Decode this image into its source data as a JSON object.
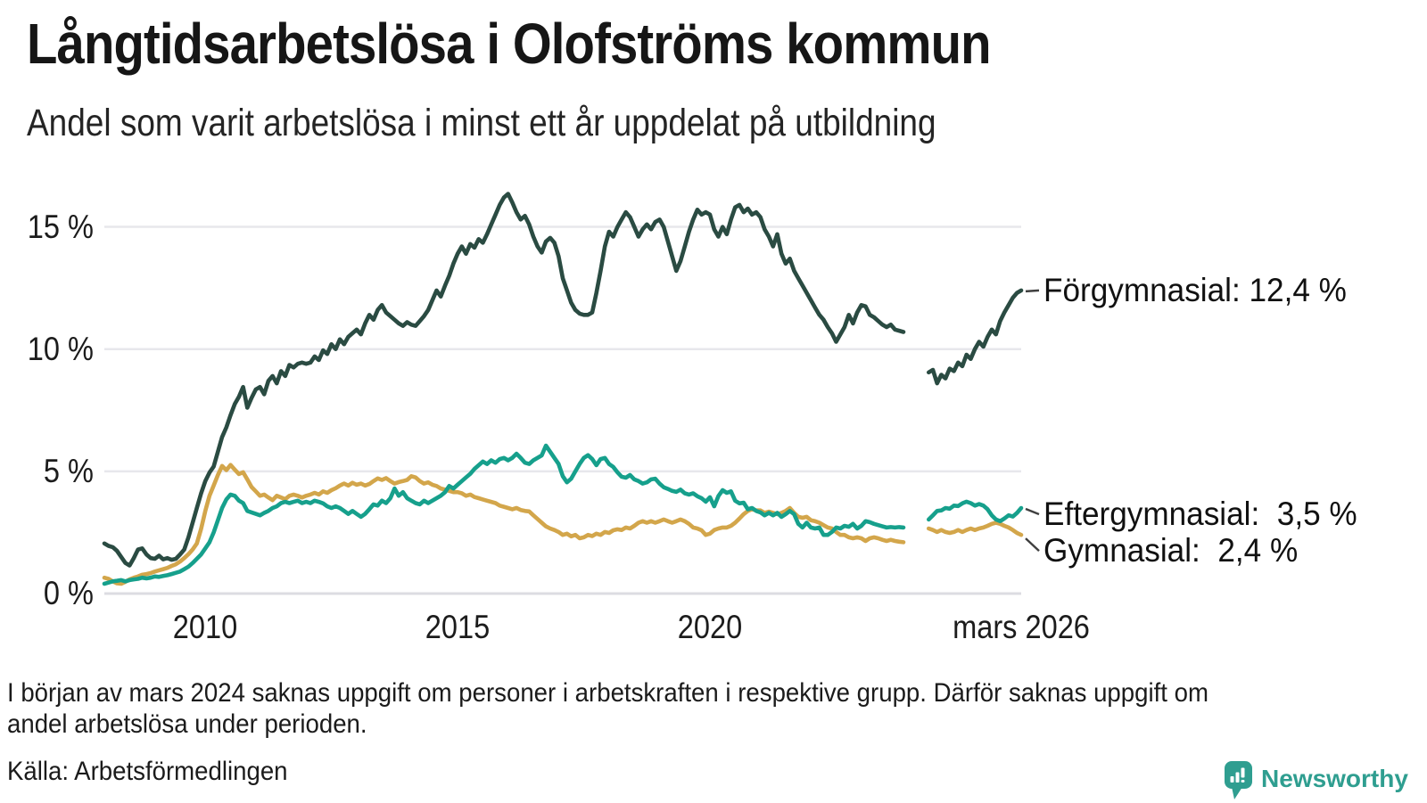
{
  "header": {
    "title": "Långtidsarbetslösa i Olofströms kommun",
    "subtitle": "Andel som varit arbetslösa i minst ett år uppdelat på utbildning"
  },
  "footer": {
    "footnote_line1": "I början av mars 2024 saknas uppgift om personer i arbetskraften i respektive grupp. Därför saknas uppgift om",
    "footnote_line2": "andel arbetslösa under perioden.",
    "source": "Källa: Arbetsförmedlingen",
    "brand_name": "Newsworthy",
    "brand_color": "#2F9E90"
  },
  "chart_data": {
    "type": "line",
    "title": "Långtidsarbetslösa i Olofströms kommun",
    "subtitle": "Andel som varit arbetslösa i minst ett år uppdelat på utbildning",
    "unit": "%",
    "x_start_year": 2008,
    "x_interval": "monthly",
    "x_end_label": "mars 2026",
    "ylim": [
      0,
      16.8
    ],
    "grid": "horizontal",
    "legend": "end-of-line-labels",
    "yticks": [
      {
        "value": 0,
        "label": "0 %"
      },
      {
        "value": 5,
        "label": "5 %"
      },
      {
        "value": 10,
        "label": "10 %"
      },
      {
        "value": 15,
        "label": "15 %"
      }
    ],
    "xticks": [
      {
        "year": 2010,
        "label": "2010"
      },
      {
        "year": 2015,
        "label": "2015"
      },
      {
        "year": 2020,
        "label": "2020"
      },
      {
        "year": 2026.1667,
        "label": "mars 2026"
      }
    ],
    "series": [
      {
        "name": "Förgymnasial",
        "end_label": "Förgymnasial: 12,4 %",
        "end_value_text": "12,4 %",
        "color": "#2A4B42",
        "values": [
          2.05,
          1.95,
          1.9,
          1.75,
          1.5,
          1.25,
          1.15,
          1.45,
          1.8,
          1.85,
          1.6,
          1.45,
          1.42,
          1.55,
          1.4,
          1.45,
          1.38,
          1.42,
          1.6,
          1.8,
          2.3,
          2.9,
          3.5,
          4.1,
          4.6,
          4.95,
          5.2,
          5.8,
          6.4,
          6.8,
          7.3,
          7.75,
          8.05,
          8.45,
          7.6,
          8.0,
          8.35,
          8.45,
          8.15,
          8.7,
          8.9,
          8.6,
          9.1,
          8.9,
          9.35,
          9.25,
          9.4,
          9.45,
          9.4,
          9.45,
          9.7,
          9.55,
          9.95,
          9.8,
          10.2,
          10.0,
          10.4,
          10.2,
          10.5,
          10.65,
          10.8,
          10.6,
          11.05,
          11.4,
          11.2,
          11.6,
          11.8,
          11.5,
          11.35,
          11.2,
          11.05,
          10.95,
          11.1,
          11.0,
          10.95,
          11.15,
          11.35,
          11.6,
          12.0,
          12.4,
          12.15,
          12.6,
          13.0,
          13.5,
          13.9,
          14.2,
          13.9,
          14.3,
          14.15,
          14.5,
          14.35,
          14.7,
          15.1,
          15.5,
          15.9,
          16.2,
          16.35,
          16.0,
          15.6,
          15.3,
          15.45,
          15.1,
          14.6,
          14.2,
          13.95,
          14.4,
          14.55,
          14.35,
          13.8,
          12.9,
          12.4,
          11.9,
          11.6,
          11.45,
          11.4,
          11.4,
          11.5,
          12.3,
          13.2,
          14.2,
          14.8,
          14.6,
          15.0,
          15.3,
          15.6,
          15.4,
          15.0,
          14.6,
          14.9,
          15.1,
          14.9,
          15.2,
          15.3,
          15.0,
          14.4,
          13.8,
          13.2,
          13.6,
          14.2,
          14.8,
          15.3,
          15.7,
          15.5,
          15.6,
          15.5,
          14.9,
          14.6,
          15.0,
          14.7,
          15.3,
          15.8,
          15.9,
          15.6,
          15.75,
          15.5,
          15.6,
          15.4,
          14.9,
          14.6,
          14.2,
          14.7,
          13.9,
          13.5,
          13.7,
          13.2,
          12.9,
          12.6,
          12.3,
          12.0,
          11.7,
          11.4,
          11.2,
          10.9,
          10.65,
          10.3,
          10.6,
          10.9,
          11.4,
          11.05,
          11.5,
          11.8,
          11.75,
          11.4,
          11.3,
          11.15,
          11.0,
          10.9,
          11.0,
          10.8,
          10.75,
          10.7,
          null,
          null,
          null,
          null,
          null,
          9.05,
          9.15,
          8.6,
          8.95,
          8.8,
          9.2,
          9.1,
          9.45,
          9.3,
          9.77,
          9.6,
          10.0,
          10.3,
          10.1,
          10.5,
          10.8,
          10.6,
          11.15,
          11.5,
          11.8,
          12.1,
          12.3,
          12.4
        ]
      },
      {
        "name": "Eftergymnasial",
        "end_label": "Eftergymnasial:  3,5 %",
        "end_value_text": "3,5 %",
        "color": "#16A08C",
        "values": [
          0.4,
          0.45,
          0.5,
          0.52,
          0.55,
          0.5,
          0.55,
          0.58,
          0.6,
          0.65,
          0.62,
          0.65,
          0.7,
          0.68,
          0.72,
          0.75,
          0.8,
          0.85,
          0.9,
          1.0,
          1.1,
          1.25,
          1.42,
          1.6,
          1.85,
          2.1,
          2.5,
          3.0,
          3.5,
          3.85,
          4.05,
          4.0,
          3.8,
          3.7,
          3.38,
          3.32,
          3.26,
          3.2,
          3.3,
          3.38,
          3.5,
          3.57,
          3.7,
          3.75,
          3.7,
          3.75,
          3.8,
          3.7,
          3.75,
          3.7,
          3.8,
          3.75,
          3.69,
          3.57,
          3.5,
          3.57,
          3.5,
          3.38,
          3.26,
          3.38,
          3.26,
          3.14,
          3.26,
          3.45,
          3.65,
          3.6,
          3.8,
          3.7,
          3.9,
          4.3,
          4.0,
          4.15,
          3.9,
          3.8,
          3.7,
          3.65,
          3.8,
          3.7,
          3.8,
          3.9,
          4.0,
          4.15,
          4.4,
          4.3,
          4.45,
          4.6,
          4.75,
          4.9,
          5.1,
          5.25,
          5.4,
          5.3,
          5.45,
          5.35,
          5.5,
          5.55,
          5.45,
          5.55,
          5.72,
          5.55,
          5.35,
          5.3,
          5.45,
          5.55,
          5.65,
          6.05,
          5.8,
          5.55,
          5.3,
          4.8,
          4.55,
          4.7,
          5.0,
          5.3,
          5.55,
          5.66,
          5.5,
          5.25,
          5.5,
          5.55,
          5.3,
          5.18,
          4.96,
          4.78,
          4.74,
          4.85,
          4.67,
          4.6,
          4.5,
          4.55,
          4.67,
          4.7,
          4.5,
          4.35,
          4.28,
          4.2,
          4.16,
          4.25,
          4.1,
          4.05,
          4.1,
          3.98,
          3.9,
          3.76,
          3.94,
          3.57,
          3.99,
          4.23,
          4.12,
          4.18,
          3.8,
          3.69,
          3.72,
          3.45,
          3.5,
          3.38,
          3.32,
          3.2,
          3.3,
          3.2,
          3.3,
          3.14,
          3.25,
          3.38,
          3.25,
          2.85,
          2.7,
          2.9,
          2.7,
          2.66,
          2.7,
          2.4,
          2.4,
          2.52,
          2.7,
          2.66,
          2.77,
          2.73,
          2.85,
          2.66,
          2.77,
          2.96,
          2.92,
          2.85,
          2.8,
          2.75,
          2.7,
          2.72,
          2.7,
          2.72,
          2.7,
          null,
          null,
          null,
          null,
          null,
          3.03,
          3.2,
          3.38,
          3.4,
          3.5,
          3.47,
          3.6,
          3.58,
          3.69,
          3.76,
          3.7,
          3.6,
          3.66,
          3.6,
          3.45,
          3.2,
          3.03,
          2.96,
          3.07,
          3.2,
          3.15,
          3.3,
          3.5
        ]
      },
      {
        "name": "Gymnasial",
        "end_label": "Gymnasial:  2,4 %",
        "end_value_text": "2,4 %",
        "color": "#D3A64B",
        "values": [
          0.65,
          0.6,
          0.5,
          0.42,
          0.4,
          0.48,
          0.58,
          0.65,
          0.7,
          0.77,
          0.8,
          0.84,
          0.9,
          0.95,
          1.0,
          1.05,
          1.13,
          1.2,
          1.31,
          1.45,
          1.61,
          1.8,
          2.05,
          2.65,
          3.38,
          4.0,
          4.42,
          4.85,
          5.22,
          5.05,
          5.26,
          5.07,
          4.89,
          4.96,
          4.67,
          4.36,
          4.18,
          4.0,
          4.05,
          3.93,
          3.82,
          4.0,
          3.93,
          3.86,
          4.0,
          4.05,
          4.0,
          3.93,
          4.0,
          4.05,
          4.12,
          4.05,
          4.18,
          4.12,
          4.23,
          4.31,
          4.42,
          4.5,
          4.42,
          4.53,
          4.45,
          4.5,
          4.42,
          4.48,
          4.6,
          4.71,
          4.65,
          4.72,
          4.6,
          4.5,
          4.56,
          4.6,
          4.65,
          4.8,
          4.75,
          4.6,
          4.5,
          4.55,
          4.45,
          4.4,
          4.3,
          4.25,
          4.2,
          4.15,
          4.15,
          4.1,
          4.0,
          4.05,
          3.95,
          3.9,
          3.85,
          3.8,
          3.75,
          3.7,
          3.6,
          3.55,
          3.5,
          3.45,
          3.5,
          3.42,
          3.38,
          3.36,
          3.2,
          3.05,
          2.9,
          2.75,
          2.66,
          2.6,
          2.52,
          2.4,
          2.45,
          2.34,
          2.4,
          2.26,
          2.3,
          2.4,
          2.35,
          2.45,
          2.4,
          2.52,
          2.48,
          2.59,
          2.63,
          2.6,
          2.7,
          2.66,
          2.77,
          2.9,
          2.96,
          2.9,
          2.96,
          2.9,
          2.96,
          3.03,
          2.96,
          2.9,
          2.96,
          3.03,
          2.96,
          2.85,
          2.7,
          2.66,
          2.59,
          2.4,
          2.45,
          2.6,
          2.66,
          2.7,
          2.7,
          2.77,
          2.9,
          3.07,
          3.25,
          3.38,
          3.45,
          3.4,
          3.4,
          3.3,
          3.35,
          3.3,
          3.25,
          3.3,
          3.38,
          3.5,
          3.3,
          3.14,
          3.1,
          3.14,
          3.0,
          2.96,
          2.9,
          2.8,
          2.7,
          2.66,
          2.52,
          2.4,
          2.4,
          2.3,
          2.26,
          2.3,
          2.26,
          2.15,
          2.26,
          2.3,
          2.26,
          2.2,
          2.15,
          2.2,
          2.15,
          2.12,
          2.1,
          null,
          null,
          null,
          null,
          null,
          2.66,
          2.6,
          2.52,
          2.6,
          2.52,
          2.48,
          2.52,
          2.6,
          2.52,
          2.6,
          2.66,
          2.6,
          2.66,
          2.7,
          2.77,
          2.85,
          2.9,
          2.85,
          2.77,
          2.7,
          2.6,
          2.48,
          2.4
        ]
      }
    ]
  }
}
